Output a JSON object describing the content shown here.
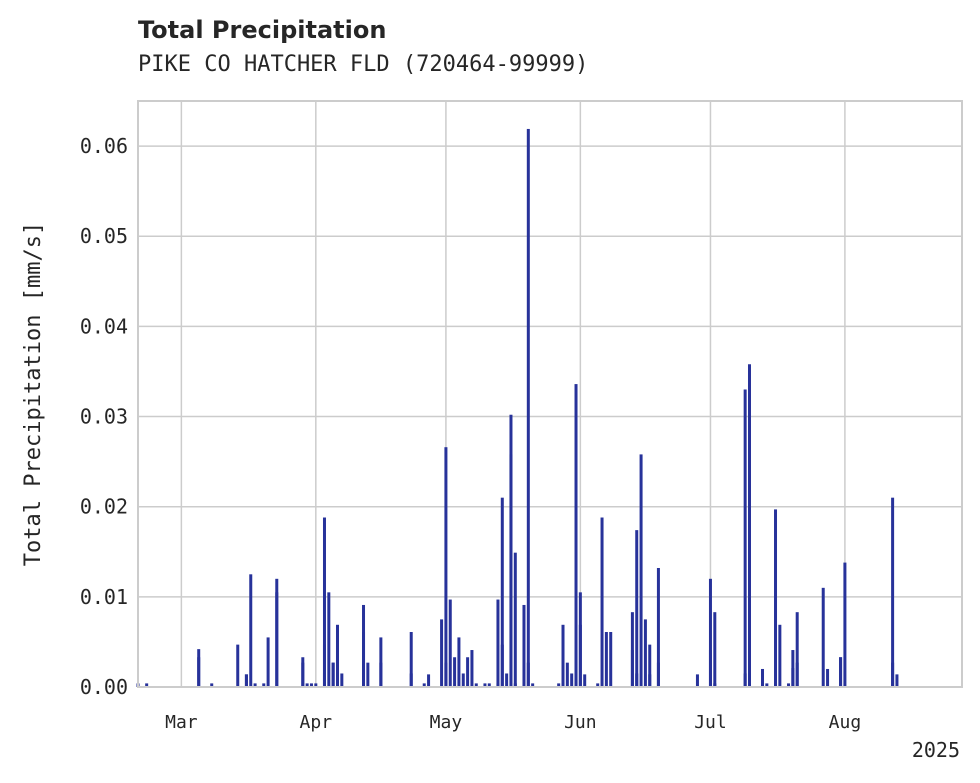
{
  "chart_data": {
    "type": "bar",
    "title": "Total Precipitation",
    "subtitle": "PIKE CO HATCHER FLD (720464-99999)",
    "ylabel": "Total Precipitation [mm/s]",
    "xlabel": "",
    "year_label": "2025",
    "ylim": [
      0,
      0.065
    ],
    "yticks": [
      "0.00",
      "0.01",
      "0.02",
      "0.03",
      "0.04",
      "0.05",
      "0.06"
    ],
    "xlim": [
      "2025-02-19",
      "2025-08-28"
    ],
    "xticks": [
      {
        "date": "2025-03-01",
        "label": "Mar"
      },
      {
        "date": "2025-04-01",
        "label": "Apr"
      },
      {
        "date": "2025-05-01",
        "label": "May"
      },
      {
        "date": "2025-06-01",
        "label": "Jun"
      },
      {
        "date": "2025-07-01",
        "label": "Jul"
      },
      {
        "date": "2025-08-01",
        "label": "Aug"
      }
    ],
    "grid": true,
    "bar_color": "#27329a",
    "series": [
      {
        "x": [
          "2025-02-19",
          "2025-02-21",
          "2025-03-05",
          "2025-03-05",
          "2025-03-08",
          "2025-03-14",
          "2025-03-16",
          "2025-03-16",
          "2025-03-17",
          "2025-03-18",
          "2025-03-20",
          "2025-03-21",
          "2025-03-23",
          "2025-03-23",
          "2025-03-29",
          "2025-03-29",
          "2025-03-30",
          "2025-03-31",
          "2025-04-01",
          "2025-04-03",
          "2025-04-03",
          "2025-04-03",
          "2025-04-04",
          "2025-04-05",
          "2025-04-05",
          "2025-04-06",
          "2025-04-06",
          "2025-04-07",
          "2025-04-12",
          "2025-04-12",
          "2025-04-13",
          "2025-04-16",
          "2025-04-16",
          "2025-04-23",
          "2025-04-23",
          "2025-04-26",
          "2025-04-27",
          "2025-04-30",
          "2025-05-01",
          "2025-05-01",
          "2025-05-02",
          "2025-05-03",
          "2025-05-04",
          "2025-05-05",
          "2025-05-06",
          "2025-05-07",
          "2025-05-08",
          "2025-05-10",
          "2025-05-11",
          "2025-05-13",
          "2025-05-13",
          "2025-05-14",
          "2025-05-14",
          "2025-05-15",
          "2025-05-16",
          "2025-05-16",
          "2025-05-17",
          "2025-05-17",
          "2025-05-19",
          "2025-05-20",
          "2025-05-20",
          "2025-05-21",
          "2025-05-27",
          "2025-05-28",
          "2025-05-29",
          "2025-05-30",
          "2025-05-31",
          "2025-05-31",
          "2025-06-01",
          "2025-06-01",
          "2025-06-02",
          "2025-06-05",
          "2025-06-06",
          "2025-06-07",
          "2025-06-08",
          "2025-06-13",
          "2025-06-13",
          "2025-06-14",
          "2025-06-14",
          "2025-06-15",
          "2025-06-16",
          "2025-06-17",
          "2025-06-17",
          "2025-06-19",
          "2025-06-19",
          "2025-06-28",
          "2025-07-01",
          "2025-07-01",
          "2025-07-02",
          "2025-07-02",
          "2025-07-09",
          "2025-07-09",
          "2025-07-10",
          "2025-07-10",
          "2025-07-13",
          "2025-07-14",
          "2025-07-16",
          "2025-07-16",
          "2025-07-17",
          "2025-07-19",
          "2025-07-20",
          "2025-07-20",
          "2025-07-21",
          "2025-07-21",
          "2025-07-27",
          "2025-07-28",
          "2025-07-31",
          "2025-07-31",
          "2025-08-01",
          "2025-08-12",
          "2025-08-12",
          "2025-08-13"
        ],
        "values": [
          0.0004,
          0.0004,
          0.0033,
          0.0042,
          0.0004,
          0.0047,
          0.0014,
          0.0014,
          0.0125,
          0.0004,
          0.0004,
          0.0055,
          0.0105,
          0.012,
          0.0027,
          0.0033,
          0.0004,
          0.0004,
          0.0004,
          0.0047,
          0.0188,
          0.0015,
          0.0105,
          0.0027,
          0.0027,
          0.0069,
          0.0015,
          0.0015,
          0.0061,
          0.0091,
          0.0027,
          0.0027,
          0.0055,
          0.0061,
          0.0015,
          0.0004,
          0.0014,
          0.0075,
          0.0266,
          0.0027,
          0.0097,
          0.0033,
          0.0055,
          0.0015,
          0.0033,
          0.0041,
          0.0004,
          0.0004,
          0.0004,
          0.0004,
          0.0097,
          0.0047,
          0.021,
          0.0015,
          0.0302,
          0.0258,
          0.0149,
          0.0004,
          0.0091,
          0.0619,
          0.0027,
          0.0004,
          0.0004,
          0.0069,
          0.0027,
          0.0015,
          0.0041,
          0.0336,
          0.0105,
          0.0069,
          0.0014,
          0.0004,
          0.0188,
          0.0061,
          0.0061,
          0.0041,
          0.0083,
          0.0174,
          0.0015,
          0.0258,
          0.0075,
          0.0047,
          0.0014,
          0.0027,
          0.0132,
          0.0014,
          0.0041,
          0.012,
          0.0083,
          0.0004,
          0.033,
          0.0015,
          0.0358,
          0.0015,
          0.002,
          0.0004,
          0.0197,
          0.0004,
          0.0069,
          0.0004,
          0.0041,
          0.0021,
          0.0083,
          0.0027,
          0.011,
          0.002,
          0.0033,
          0.0033,
          0.0138,
          0.0027,
          0.021,
          0.0014
        ]
      }
    ]
  }
}
